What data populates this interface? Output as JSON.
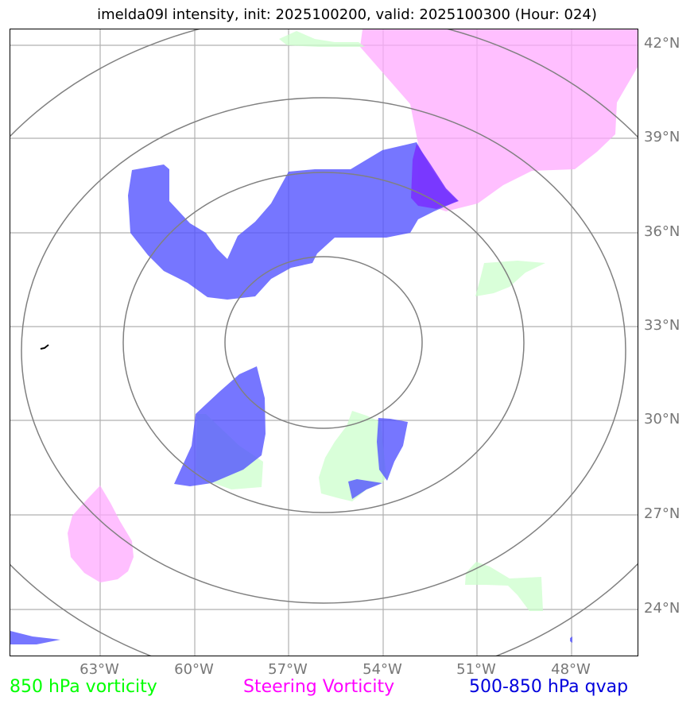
{
  "title": "imelda09l intensity, init: 2025100200, valid: 2025100300 (Hour: 024)",
  "lat_labels": [
    "42°N",
    "39°N",
    "36°N",
    "33°N",
    "30°N",
    "27°N",
    "24°N"
  ],
  "lon_labels": [
    "63°W",
    "60°W",
    "57°W",
    "54°W",
    "51°W",
    "48°W"
  ],
  "legend": {
    "vort850": {
      "label": "850 hPa vorticity",
      "color": "#00ff00"
    },
    "steering": {
      "label": "Steering Vorticity",
      "color": "#ff00ff"
    },
    "qvap": {
      "label": "500-850 hPa qvap",
      "color": "#0000dd"
    }
  },
  "colors": {
    "vort_fill": "#ccffcc",
    "steering_fill": "#ffaaff",
    "qvap_fill": "#5050ff",
    "gridline": "#b0b0b0",
    "range_ring": "#808080"
  }
}
